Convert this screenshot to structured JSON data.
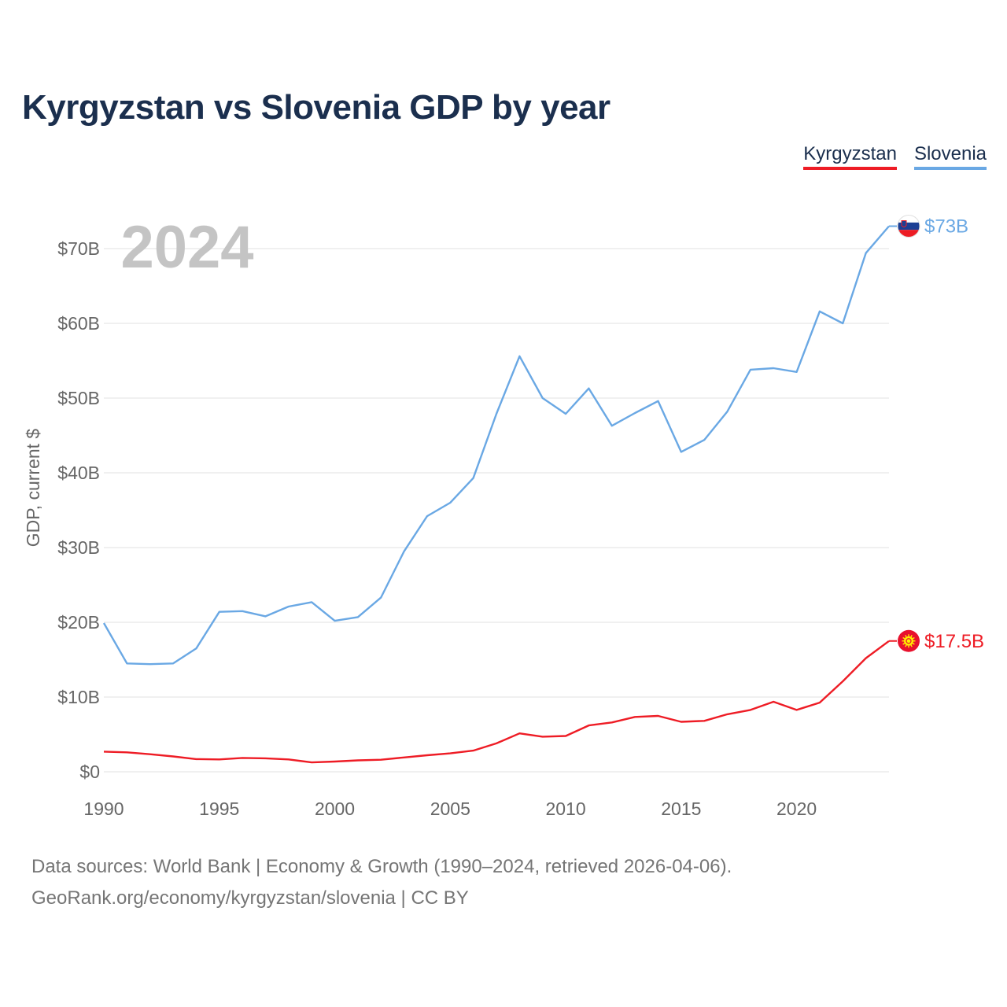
{
  "title": "Kyrgyzstan vs Slovenia GDP by year",
  "legend": [
    {
      "label": "Kyrgyzstan",
      "color": "#ee1c25"
    },
    {
      "label": "Slovenia",
      "color": "#6aa8e4"
    }
  ],
  "footer": {
    "line1": "Data sources: World Bank | Economy & Growth (1990–2024, retrieved 2026-04-06).",
    "line2": "GeoRank.org/economy/kyrgyzstan/slovenia | CC BY"
  },
  "chart_data": {
    "type": "line",
    "title": "Kyrgyzstan vs Slovenia GDP by year",
    "ylabel": "GDP, current $",
    "xlabel": "",
    "year_overlay": "2024",
    "x": [
      1990,
      1991,
      1992,
      1993,
      1994,
      1995,
      1996,
      1997,
      1998,
      1999,
      2000,
      2001,
      2002,
      2003,
      2004,
      2005,
      2006,
      2007,
      2008,
      2009,
      2010,
      2011,
      2012,
      2013,
      2014,
      2015,
      2016,
      2017,
      2018,
      2019,
      2020,
      2021,
      2022,
      2023,
      2024
    ],
    "xlim": [
      1990,
      2024
    ],
    "ylim": [
      0,
      70
    ],
    "xticks": [
      1990,
      1995,
      2000,
      2005,
      2010,
      2015,
      2020
    ],
    "xtick_labels": [
      "1990",
      "1995",
      "2000",
      "2005",
      "2010",
      "2015",
      "2020"
    ],
    "yticks": [
      0,
      10,
      20,
      30,
      40,
      50,
      60,
      70
    ],
    "ytick_labels": [
      "$0",
      "$10B",
      "$20B",
      "$30B",
      "$40B",
      "$50B",
      "$60B",
      "$70B"
    ],
    "grid": true,
    "series": [
      {
        "name": "Slovenia",
        "color": "#6aa8e4",
        "end_label": "$73B",
        "flag": "slovenia-flag-icon",
        "values": [
          19.9,
          14.5,
          14.4,
          14.5,
          16.5,
          21.4,
          21.5,
          20.8,
          22.1,
          22.7,
          20.2,
          20.7,
          23.3,
          29.5,
          34.2,
          36.0,
          39.3,
          47.9,
          55.6,
          50.0,
          47.9,
          51.3,
          46.3,
          48.0,
          49.6,
          42.8,
          44.4,
          48.2,
          53.8,
          54.0,
          53.5,
          61.6,
          60.0,
          69.4,
          73.0
        ]
      },
      {
        "name": "Kyrgyzstan",
        "color": "#ee1c25",
        "end_label": "$17.5B",
        "flag": "kyrgyzstan-flag-icon",
        "values": [
          2.7,
          2.6,
          2.35,
          2.05,
          1.7,
          1.65,
          1.85,
          1.8,
          1.65,
          1.25,
          1.37,
          1.53,
          1.61,
          1.92,
          2.21,
          2.46,
          2.83,
          3.8,
          5.14,
          4.69,
          4.79,
          6.2,
          6.6,
          7.34,
          7.47,
          6.68,
          6.81,
          7.7,
          8.27,
          9.37,
          8.27,
          9.25,
          12.1,
          15.2,
          17.5
        ]
      }
    ]
  }
}
